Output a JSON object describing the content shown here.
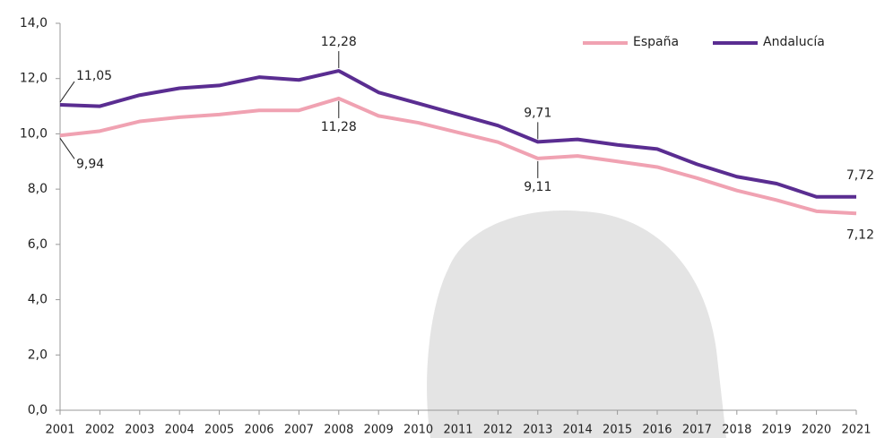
{
  "chart_data": {
    "type": "line",
    "categories": [
      "2001",
      "2002",
      "2003",
      "2004",
      "2005",
      "2006",
      "2007",
      "2008",
      "2009",
      "2010",
      "2011",
      "2012",
      "2013",
      "2014",
      "2015",
      "2016",
      "2017",
      "2018",
      "2019",
      "2020",
      "2021"
    ],
    "series": [
      {
        "name": "España",
        "color": "#f0a2b2",
        "values": [
          9.94,
          10.1,
          10.45,
          10.6,
          10.7,
          10.85,
          10.85,
          11.28,
          10.65,
          10.4,
          10.05,
          9.7,
          9.11,
          9.2,
          9.0,
          8.8,
          8.4,
          7.95,
          7.6,
          7.2,
          7.12
        ],
        "value_labels": [
          "9,94",
          null,
          null,
          null,
          null,
          null,
          null,
          "11,28",
          null,
          null,
          null,
          null,
          "9,11",
          null,
          null,
          null,
          null,
          null,
          null,
          null,
          "7,12"
        ]
      },
      {
        "name": "Andalucía",
        "color": "#5a2d91",
        "values": [
          11.05,
          11.0,
          11.4,
          11.65,
          11.75,
          12.05,
          11.95,
          12.28,
          11.5,
          11.1,
          10.7,
          10.3,
          9.71,
          9.8,
          9.6,
          9.45,
          8.9,
          8.45,
          8.2,
          7.72,
          7.72
        ],
        "value_labels": [
          "11,05",
          null,
          null,
          null,
          null,
          null,
          null,
          "12,28",
          null,
          null,
          null,
          null,
          "9,71",
          null,
          null,
          null,
          null,
          null,
          null,
          null,
          "7,72"
        ]
      }
    ],
    "ylim": [
      0,
      14
    ],
    "yticks": [
      {
        "value": 0,
        "label": "0,0"
      },
      {
        "value": 2,
        "label": "2,0"
      },
      {
        "value": 4,
        "label": "4,0"
      },
      {
        "value": 6,
        "label": "6,0"
      },
      {
        "value": 8,
        "label": "8,0"
      },
      {
        "value": 10,
        "label": "10,0"
      },
      {
        "value": 12,
        "label": "12,0"
      },
      {
        "value": 14,
        "label": "14,0"
      }
    ],
    "legend": "top-right"
  }
}
